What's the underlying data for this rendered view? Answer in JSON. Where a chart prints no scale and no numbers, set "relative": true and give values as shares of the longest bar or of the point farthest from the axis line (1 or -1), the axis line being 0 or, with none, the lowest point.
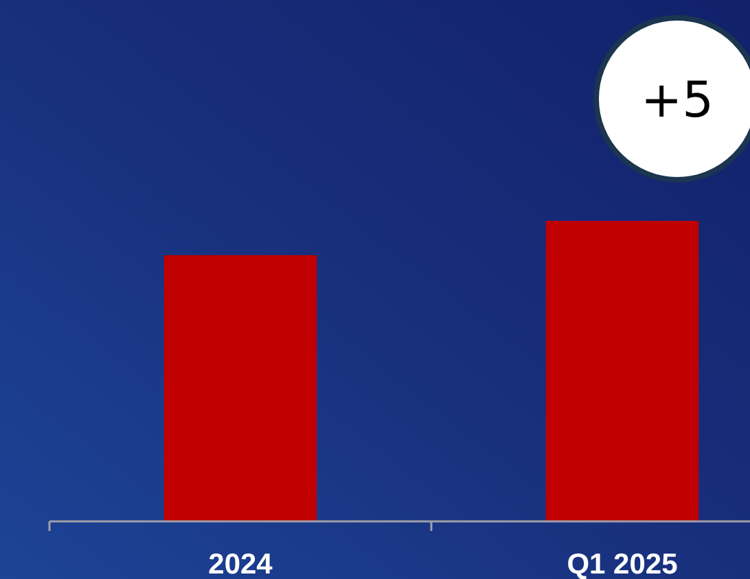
{
  "chart_data": {
    "type": "bar",
    "relative": true,
    "categories": [
      "2024",
      "Q1 2025"
    ],
    "values": [
      0.886,
      1
    ],
    "color": "#c00000",
    "annotations": [
      "+5"
    ]
  }
}
